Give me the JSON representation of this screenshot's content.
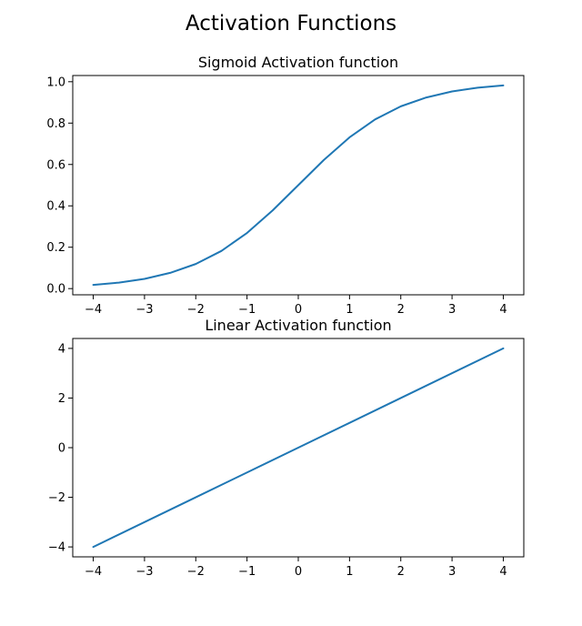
{
  "figure": {
    "title": "Activation Functions"
  },
  "chart_data": [
    {
      "type": "line",
      "title": "Sigmoid Activation function",
      "xlabel": "",
      "ylabel": "",
      "xlim": [
        -4.4,
        4.4
      ],
      "ylim": [
        -0.03,
        1.03
      ],
      "grid": false,
      "x_ticks": [
        -4,
        -3,
        -2,
        -1,
        0,
        1,
        2,
        3,
        4
      ],
      "x_tick_labels": [
        "−4",
        "−3",
        "−2",
        "−1",
        "0",
        "1",
        "2",
        "3",
        "4"
      ],
      "y_ticks": [
        0.0,
        0.2,
        0.4,
        0.6,
        0.8,
        1.0
      ],
      "y_tick_labels": [
        "0.0",
        "0.2",
        "0.4",
        "0.6",
        "0.8",
        "1.0"
      ],
      "series": [
        {
          "color": "#1f77b4",
          "x": [
            -4,
            -3.5,
            -3,
            -2.5,
            -2,
            -1.5,
            -1,
            -0.5,
            0,
            0.5,
            1,
            1.5,
            2,
            2.5,
            3,
            3.5,
            4
          ],
          "y": [
            0.018,
            0.029,
            0.047,
            0.076,
            0.119,
            0.182,
            0.269,
            0.378,
            0.5,
            0.622,
            0.731,
            0.818,
            0.881,
            0.924,
            0.953,
            0.971,
            0.982
          ]
        }
      ]
    },
    {
      "type": "line",
      "title": "Linear Activation function",
      "xlabel": "",
      "ylabel": "",
      "xlim": [
        -4.4,
        4.4
      ],
      "ylim": [
        -4.4,
        4.4
      ],
      "grid": false,
      "x_ticks": [
        -4,
        -3,
        -2,
        -1,
        0,
        1,
        2,
        3,
        4
      ],
      "x_tick_labels": [
        "−4",
        "−3",
        "−2",
        "−1",
        "0",
        "1",
        "2",
        "3",
        "4"
      ],
      "y_ticks": [
        -4,
        -2,
        0,
        2,
        4
      ],
      "y_tick_labels": [
        "−4",
        "−2",
        "0",
        "2",
        "4"
      ],
      "series": [
        {
          "color": "#1f77b4",
          "x": [
            -4,
            -2,
            0,
            2,
            4
          ],
          "y": [
            -4,
            -2,
            0,
            2,
            4
          ]
        }
      ]
    }
  ]
}
